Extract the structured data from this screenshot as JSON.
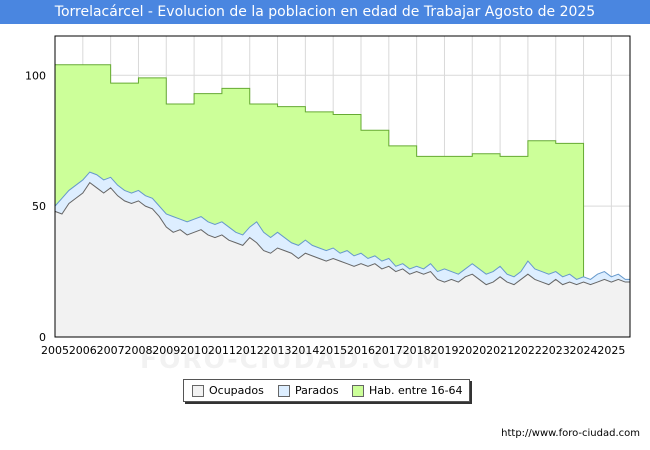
{
  "chart_data": {
    "type": "area",
    "title": "Torrelacárcel - Evolucion de la poblacion en edad de Trabajar Agosto de 2025",
    "xlabel": "",
    "ylabel": "",
    "xlim": [
      2005,
      2025.67
    ],
    "ylim": [
      0,
      115
    ],
    "yticks": [
      0,
      50,
      100
    ],
    "xticks": [
      2005,
      2006,
      2007,
      2008,
      2009,
      2010,
      2011,
      2012,
      2013,
      2014,
      2015,
      2016,
      2017,
      2018,
      2019,
      2020,
      2021,
      2022,
      2023,
      2024,
      2025
    ],
    "grid": true,
    "legend_position": "bottom",
    "series": [
      {
        "name": "Hab. entre 16-64",
        "fill": "#ccff99",
        "stroke": "#66aa33",
        "steps": [
          {
            "year": 2005,
            "value": 104
          },
          {
            "year": 2007,
            "value": 97
          },
          {
            "year": 2008,
            "value": 99
          },
          {
            "year": 2009,
            "value": 89
          },
          {
            "year": 2010,
            "value": 93
          },
          {
            "year": 2011,
            "value": 95
          },
          {
            "year": 2012,
            "value": 89
          },
          {
            "year": 2013,
            "value": 88
          },
          {
            "year": 2014,
            "value": 86
          },
          {
            "year": 2015,
            "value": 85
          },
          {
            "year": 2016,
            "value": 79
          },
          {
            "year": 2017,
            "value": 73
          },
          {
            "year": 2018,
            "value": 69
          },
          {
            "year": 2019,
            "value": 69
          },
          {
            "year": 2020,
            "value": 70
          },
          {
            "year": 2021,
            "value": 69
          },
          {
            "year": 2022,
            "value": 75
          },
          {
            "year": 2023,
            "value": 74
          }
        ],
        "end_year": 2024
      },
      {
        "name": "Parados",
        "fill": "#ddeeff",
        "stroke": "#6699cc",
        "x": [
          2005.0,
          2005.25,
          2005.5,
          2005.75,
          2006.0,
          2006.25,
          2006.5,
          2006.75,
          2007.0,
          2007.25,
          2007.5,
          2007.75,
          2008.0,
          2008.25,
          2008.5,
          2008.75,
          2009.0,
          2009.25,
          2009.5,
          2009.75,
          2010.0,
          2010.25,
          2010.5,
          2010.75,
          2011.0,
          2011.25,
          2011.5,
          2011.75,
          2012.0,
          2012.25,
          2012.5,
          2012.75,
          2013.0,
          2013.25,
          2013.5,
          2013.75,
          2014.0,
          2014.25,
          2014.5,
          2014.75,
          2015.0,
          2015.25,
          2015.5,
          2015.75,
          2016.0,
          2016.25,
          2016.5,
          2016.75,
          2017.0,
          2017.25,
          2017.5,
          2017.75,
          2018.0,
          2018.25,
          2018.5,
          2018.75,
          2019.0,
          2019.25,
          2019.5,
          2019.75,
          2020.0,
          2020.25,
          2020.5,
          2020.75,
          2021.0,
          2021.25,
          2021.5,
          2021.75,
          2022.0,
          2022.25,
          2022.5,
          2022.75,
          2023.0,
          2023.25,
          2023.5,
          2023.75,
          2024.0,
          2024.25,
          2024.5,
          2024.75,
          2025.0,
          2025.25,
          2025.5
        ],
        "values": [
          50,
          53,
          56,
          58,
          60,
          63,
          62,
          60,
          61,
          58,
          56,
          55,
          56,
          54,
          53,
          50,
          47,
          46,
          45,
          44,
          45,
          46,
          44,
          43,
          44,
          42,
          40,
          39,
          42,
          44,
          40,
          38,
          40,
          38,
          36,
          35,
          37,
          35,
          34,
          33,
          34,
          32,
          33,
          31,
          32,
          30,
          31,
          29,
          30,
          27,
          28,
          26,
          27,
          26,
          28,
          25,
          26,
          25,
          24,
          26,
          28,
          26,
          24,
          25,
          27,
          24,
          23,
          25,
          29,
          26,
          25,
          24,
          25,
          23,
          24,
          22,
          23,
          22,
          24,
          25,
          23,
          24,
          22
        ]
      },
      {
        "name": "Ocupados",
        "fill": "#f2f2f2",
        "stroke": "#666666",
        "x": [
          2005.0,
          2005.25,
          2005.5,
          2005.75,
          2006.0,
          2006.25,
          2006.5,
          2006.75,
          2007.0,
          2007.25,
          2007.5,
          2007.75,
          2008.0,
          2008.25,
          2008.5,
          2008.75,
          2009.0,
          2009.25,
          2009.5,
          2009.75,
          2010.0,
          2010.25,
          2010.5,
          2010.75,
          2011.0,
          2011.25,
          2011.5,
          2011.75,
          2012.0,
          2012.25,
          2012.5,
          2012.75,
          2013.0,
          2013.25,
          2013.5,
          2013.75,
          2014.0,
          2014.25,
          2014.5,
          2014.75,
          2015.0,
          2015.25,
          2015.5,
          2015.75,
          2016.0,
          2016.25,
          2016.5,
          2016.75,
          2017.0,
          2017.25,
          2017.5,
          2017.75,
          2018.0,
          2018.25,
          2018.5,
          2018.75,
          2019.0,
          2019.25,
          2019.5,
          2019.75,
          2020.0,
          2020.25,
          2020.5,
          2020.75,
          2021.0,
          2021.25,
          2021.5,
          2021.75,
          2022.0,
          2022.25,
          2022.5,
          2022.75,
          2023.0,
          2023.25,
          2023.5,
          2023.75,
          2024.0,
          2024.25,
          2024.5,
          2024.75,
          2025.0,
          2025.25,
          2025.5
        ],
        "values": [
          48,
          47,
          51,
          53,
          55,
          59,
          57,
          55,
          57,
          54,
          52,
          51,
          52,
          50,
          49,
          46,
          42,
          40,
          41,
          39,
          40,
          41,
          39,
          38,
          39,
          37,
          36,
          35,
          38,
          36,
          33,
          32,
          34,
          33,
          32,
          30,
          32,
          31,
          30,
          29,
          30,
          29,
          28,
          27,
          28,
          27,
          28,
          26,
          27,
          25,
          26,
          24,
          25,
          24,
          25,
          22,
          21,
          22,
          21,
          23,
          24,
          22,
          20,
          21,
          23,
          21,
          20,
          22,
          24,
          22,
          21,
          20,
          22,
          20,
          21,
          20,
          21,
          20,
          21,
          22,
          21,
          22,
          21
        ]
      }
    ]
  },
  "legend": {
    "items": [
      {
        "label": "Ocupados",
        "color": "#f2f2f2"
      },
      {
        "label": "Parados",
        "color": "#ddeeff"
      },
      {
        "label": "Hab. entre 16-64",
        "color": "#ccff99"
      }
    ]
  },
  "source": "http://www.foro-ciudad.com",
  "watermark": "FORO-CIUDAD.COM",
  "colors": {
    "title_bg": "#4a86e0",
    "grid": "#d9d9d9"
  }
}
